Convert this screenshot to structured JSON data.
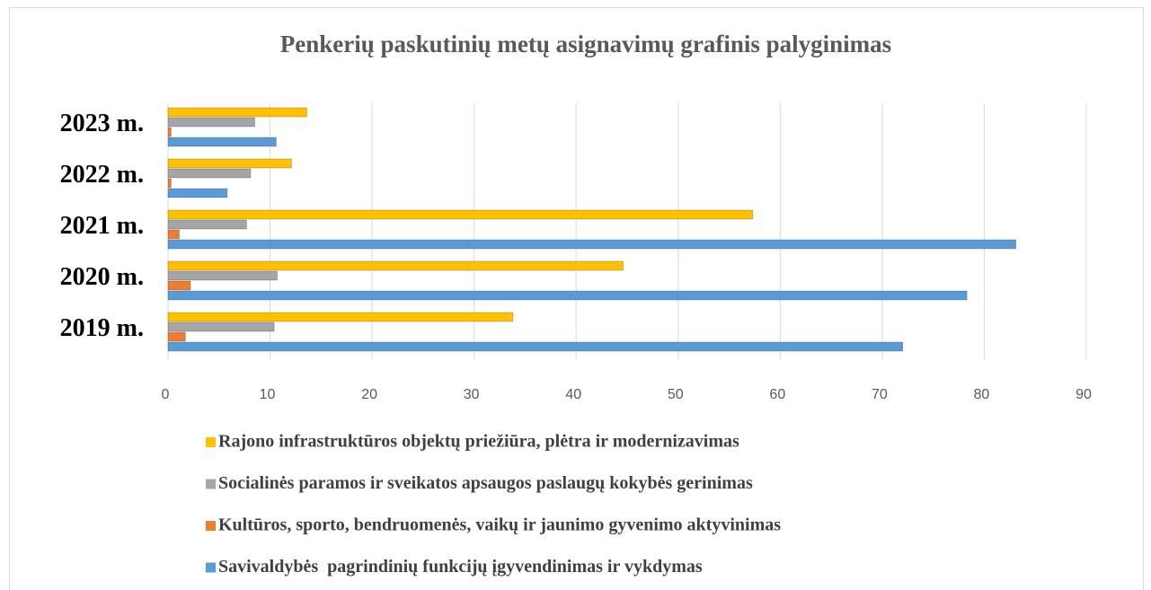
{
  "chart_data": {
    "type": "bar",
    "orientation": "horizontal",
    "title": "Penkerių paskutinių metų asignavimų grafinis palyginimas",
    "categories": [
      "2019 m.",
      "2020 m.",
      "2021 m.",
      "2022 m.",
      "2023 m."
    ],
    "series": [
      {
        "name": "Rajono infrastruktūros objektų priežiūra, plėtra ir modernizavimas",
        "color": "#FFC000",
        "values": [
          33.8,
          44.6,
          57.3,
          12.1,
          13.6
        ]
      },
      {
        "name": "Socialinės paramos ir sveikatos apsaugos paslaugų kokybės gerinimas",
        "color": "#A5A5A5",
        "values": [
          10.4,
          10.7,
          7.7,
          8.1,
          8.5
        ]
      },
      {
        "name": "Kultūros, sporto, bendruomenės, vaikų ir jaunimo gyvenimo aktyvinimas",
        "color": "#ED7D31",
        "values": [
          1.7,
          2.2,
          1.1,
          0.3,
          0.3
        ]
      },
      {
        "name": "Savivaldybės  pagrindinių funkcijų įgyvendinimas ir vykdymas",
        "color": "#5B9BD5",
        "values": [
          72,
          78.3,
          83.1,
          5.8,
          10.6
        ]
      }
    ],
    "xlim": [
      0,
      90
    ],
    "xticks": [
      0,
      10,
      20,
      30,
      40,
      50,
      60,
      70,
      80,
      90
    ],
    "grid": true,
    "legend": "bottom"
  }
}
